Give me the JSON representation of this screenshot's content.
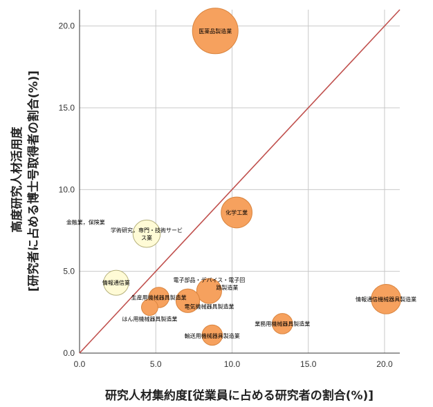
{
  "chart_data": {
    "type": "scatter",
    "subtype": "bubble",
    "title": "",
    "xlabel": "研究人材集約度[従業員に占める研究者の割合(%)]",
    "ylabel_line1": "高度研究人材活用度",
    "ylabel_line2": "[研究者に占める博士号取得者の割合(%)]",
    "xlim": [
      0,
      21
    ],
    "ylim": [
      0,
      21
    ],
    "x_ticks": [
      0,
      5,
      10,
      15,
      20
    ],
    "y_ticks": [
      0,
      5,
      10,
      15,
      20
    ],
    "x_tick_labels": [
      "0.0",
      "5.0",
      "10.0",
      "15.0",
      "20.0"
    ],
    "y_tick_labels": [
      "0.0",
      "5.0",
      "10.0",
      "15.0",
      "20.0"
    ],
    "grid": true,
    "reference_line": {
      "from": [
        0,
        0
      ],
      "to": [
        21,
        21
      ],
      "color": "#c0504d"
    },
    "colors": {
      "manufacturing": "#f6a15e",
      "manufacturing_edge": "#d9843e",
      "services": "#fffbd6",
      "services_edge": "#b5b07a",
      "axis": "#333333",
      "grid": "#c8c8c8"
    },
    "points": [
      {
        "name": "医薬品製造業",
        "x": 8.9,
        "y": 19.7,
        "size": 1.0,
        "group": "manufacturing"
      },
      {
        "name": "化学工業",
        "x": 10.3,
        "y": 8.6,
        "size": 0.46,
        "group": "manufacturing"
      },
      {
        "name": "金融業，保険業",
        "x": 0.4,
        "y": 8.0,
        "size": 0.0,
        "group": "services"
      },
      {
        "name": "学術研究，専門・技術サービス業",
        "x": 4.4,
        "y": 7.3,
        "size": 0.36,
        "group": "services"
      },
      {
        "name": "情報通信業",
        "x": 2.4,
        "y": 4.3,
        "size": 0.3,
        "group": "services"
      },
      {
        "name": "電子部品・デバイス・電子回路製造業",
        "x": 8.5,
        "y": 3.8,
        "size": 0.3,
        "group": "manufacturing"
      },
      {
        "name": "生産用機械器具製造業",
        "x": 5.2,
        "y": 3.4,
        "size": 0.2,
        "group": "manufacturing"
      },
      {
        "name": "電気機械器具製造業",
        "x": 7.1,
        "y": 3.2,
        "size": 0.27,
        "group": "manufacturing"
      },
      {
        "name": "はん用機械器具製造業",
        "x": 4.6,
        "y": 2.8,
        "size": 0.13,
        "group": "manufacturing"
      },
      {
        "name": "情報通信機械器具製造業",
        "x": 20.1,
        "y": 3.3,
        "size": 0.42,
        "group": "manufacturing"
      },
      {
        "name": "業務用機械器具製造業",
        "x": 13.3,
        "y": 1.8,
        "size": 0.2,
        "group": "manufacturing"
      },
      {
        "name": "輸送用機械器具製造業",
        "x": 8.7,
        "y": 1.1,
        "size": 0.2,
        "group": "manufacturing"
      }
    ]
  }
}
